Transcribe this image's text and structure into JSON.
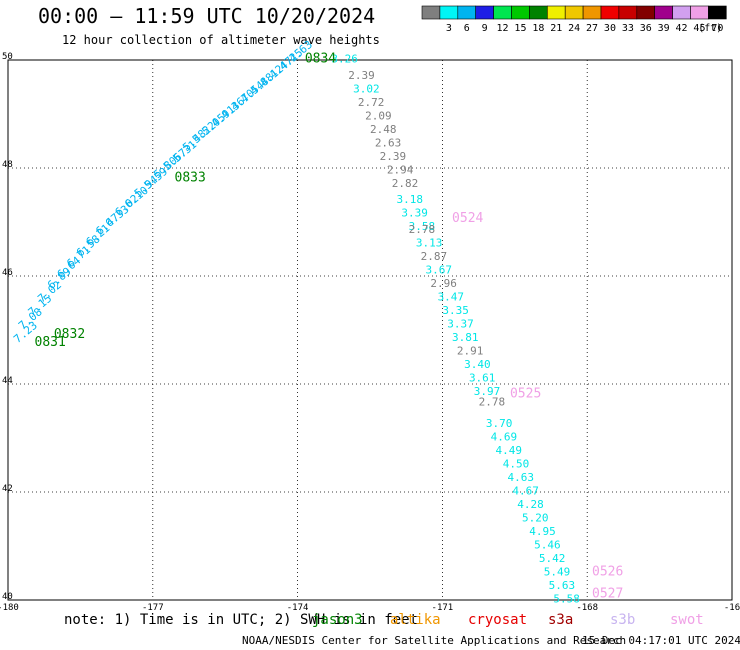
{
  "header": {
    "title": "00:00 – 11:59 UTC 10/20/2024",
    "subtitle": "12 hour collection of altimeter wave heights"
  },
  "color_scale": {
    "unit": "(ft)",
    "bins": [
      {
        "label": "",
        "color": "#7f7f7f"
      },
      {
        "label": "3",
        "color": "#00f5f5"
      },
      {
        "label": "6",
        "color": "#00b4f0"
      },
      {
        "label": "9",
        "color": "#1e1ee6"
      },
      {
        "label": "12",
        "color": "#00e650"
      },
      {
        "label": "15",
        "color": "#00c800"
      },
      {
        "label": "18",
        "color": "#008200"
      },
      {
        "label": "21",
        "color": "#f0f000"
      },
      {
        "label": "24",
        "color": "#f0c800"
      },
      {
        "label": "27",
        "color": "#f09600"
      },
      {
        "label": "30",
        "color": "#f00000"
      },
      {
        "label": "33",
        "color": "#c80000"
      },
      {
        "label": "36",
        "color": "#820000"
      },
      {
        "label": "39",
        "color": "#a0008c"
      },
      {
        "label": "42",
        "color": "#d2a0f0"
      },
      {
        "label": "45",
        "color": "#f0a0e6"
      },
      {
        "label": "70",
        "color": "#000000"
      }
    ]
  },
  "footer": {
    "note": "note: 1) Time is in UTC; 2) SWH is in feet",
    "satellites": [
      {
        "name": "jason3",
        "color": "#008200"
      },
      {
        "name": "altika",
        "color": "#f09600"
      },
      {
        "name": "cryosat",
        "color": "#e60000"
      },
      {
        "name": "s3a",
        "color": "#a00000"
      },
      {
        "name": "s3b",
        "color": "#c8b4f0"
      },
      {
        "name": "swot",
        "color": "#f0a0e6"
      }
    ],
    "credit": "NOAA/NESDIS Center for Satellite Applications and Research",
    "timestamp": "15 Dec 04:17:01 UTC 2024"
  },
  "chart_data": {
    "type": "scatter",
    "title": "00:00 – 11:59 UTC 10/20/2024",
    "subtitle": "12 hour collection of altimeter wave heights",
    "xlim": [
      -180,
      -165
    ],
    "ylim": [
      40,
      50
    ],
    "x_ticks": [
      "-180",
      "-177",
      "-174",
      "-171",
      "-168",
      "-16"
    ],
    "y_ticks": [
      "40",
      "42",
      "44",
      "46",
      "48",
      "50"
    ],
    "grid": true,
    "time_labels": [
      {
        "text": "0834",
        "x": -173.85,
        "y": 49.95,
        "color": "#008200"
      },
      {
        "text": "0833",
        "x": -176.55,
        "y": 47.75,
        "color": "#008200"
      },
      {
        "text": "0832",
        "x": -179.05,
        "y": 44.85,
        "color": "#008200"
      },
      {
        "text": "0831",
        "x": -179.45,
        "y": 44.7,
        "color": "#008200"
      },
      {
        "text": "0524",
        "x": -170.8,
        "y": 47.0,
        "color": "#f0a0e6"
      },
      {
        "text": "0525",
        "x": -169.6,
        "y": 43.75,
        "color": "#f0a0e6"
      },
      {
        "text": "0526",
        "x": -167.9,
        "y": 40.45,
        "color": "#f0a0e6"
      },
      {
        "text": "0527",
        "x": -167.9,
        "y": 40.05,
        "color": "#f0a0e6"
      }
    ],
    "series": [
      {
        "name": "jason3",
        "color": "#00b4f0",
        "points": [
          {
            "x": -174.1,
            "y": 49.95,
            "v": "4.63"
          },
          {
            "x": -174.3,
            "y": 49.8,
            "v": "4.25"
          },
          {
            "x": -174.5,
            "y": 49.65,
            "v": "4.47"
          },
          {
            "x": -174.7,
            "y": 49.5,
            "v": "4.12"
          },
          {
            "x": -174.9,
            "y": 49.35,
            "v": "4.88"
          },
          {
            "x": -175.1,
            "y": 49.2,
            "v": "4.54"
          },
          {
            "x": -175.3,
            "y": 49.05,
            "v": "4.70"
          },
          {
            "x": -175.5,
            "y": 48.9,
            "v": "4.36"
          },
          {
            "x": -175.7,
            "y": 48.75,
            "v": "4.91"
          },
          {
            "x": -175.9,
            "y": 48.6,
            "v": "5.05"
          },
          {
            "x": -176.1,
            "y": 48.45,
            "v": "5.22"
          },
          {
            "x": -176.3,
            "y": 48.3,
            "v": "5.48"
          },
          {
            "x": -176.5,
            "y": 48.1,
            "v": "5.31"
          },
          {
            "x": -176.7,
            "y": 47.95,
            "v": "5.67"
          },
          {
            "x": -176.9,
            "y": 47.8,
            "v": "5.80"
          },
          {
            "x": -177.1,
            "y": 47.6,
            "v": "5.59"
          },
          {
            "x": -177.3,
            "y": 47.45,
            "v": "5.94"
          },
          {
            "x": -177.5,
            "y": 47.25,
            "v": "6.10"
          },
          {
            "x": -177.7,
            "y": 47.1,
            "v": "6.02"
          },
          {
            "x": -177.9,
            "y": 46.9,
            "v": "6.33"
          },
          {
            "x": -178.1,
            "y": 46.75,
            "v": "6.47"
          },
          {
            "x": -178.3,
            "y": 46.55,
            "v": "6.21"
          },
          {
            "x": -178.5,
            "y": 46.35,
            "v": "6.58"
          },
          {
            "x": -178.7,
            "y": 46.15,
            "v": "6.71"
          },
          {
            "x": -178.9,
            "y": 45.95,
            "v": "6.64"
          },
          {
            "x": -179.1,
            "y": 45.75,
            "v": "6.89"
          },
          {
            "x": -179.3,
            "y": 45.5,
            "v": "7.02"
          },
          {
            "x": -179.5,
            "y": 45.25,
            "v": "7.15"
          },
          {
            "x": -179.7,
            "y": 45.0,
            "v": "7.08"
          },
          {
            "x": -179.8,
            "y": 44.75,
            "v": "7.23"
          }
        ]
      },
      {
        "name": "swot",
        "color": "#00e6e6",
        "points": [
          {
            "x": -173.3,
            "y": 49.95,
            "v": "3.26",
            "color": "#00e6e6"
          },
          {
            "x": -172.95,
            "y": 49.65,
            "v": "2.39",
            "color": "#7f7f7f"
          },
          {
            "x": -172.85,
            "y": 49.4,
            "v": "3.02",
            "color": "#00e6e6"
          },
          {
            "x": -172.75,
            "y": 49.15,
            "v": "2.72",
            "color": "#7f7f7f"
          },
          {
            "x": -172.6,
            "y": 48.9,
            "v": "2.09",
            "color": "#7f7f7f"
          },
          {
            "x": -172.5,
            "y": 48.65,
            "v": "2.48",
            "color": "#7f7f7f"
          },
          {
            "x": -172.4,
            "y": 48.4,
            "v": "2.63",
            "color": "#7f7f7f"
          },
          {
            "x": -172.3,
            "y": 48.15,
            "v": "2.39",
            "color": "#7f7f7f"
          },
          {
            "x": -172.15,
            "y": 47.9,
            "v": "2.94",
            "color": "#7f7f7f"
          },
          {
            "x": -172.05,
            "y": 47.65,
            "v": "2.82",
            "color": "#7f7f7f"
          },
          {
            "x": -171.95,
            "y": 47.35,
            "v": "3.18",
            "color": "#00e6e6"
          },
          {
            "x": -171.85,
            "y": 47.1,
            "v": "3.39",
            "color": "#00e6e6"
          },
          {
            "x": -171.7,
            "y": 46.85,
            "v": "3.58",
            "color": "#00e6e6"
          },
          {
            "x": -171.7,
            "y": 46.8,
            "v": "2.78",
            "color": "#7f7f7f"
          },
          {
            "x": -171.55,
            "y": 46.55,
            "v": "3.13",
            "color": "#00e6e6"
          },
          {
            "x": -171.45,
            "y": 46.3,
            "v": "2.87",
            "color": "#7f7f7f"
          },
          {
            "x": -171.35,
            "y": 46.05,
            "v": "3.67",
            "color": "#00e6e6"
          },
          {
            "x": -171.25,
            "y": 45.8,
            "v": "2.96",
            "color": "#7f7f7f"
          },
          {
            "x": -171.1,
            "y": 45.55,
            "v": "3.47",
            "color": "#00e6e6"
          },
          {
            "x": -171.0,
            "y": 45.3,
            "v": "3.35",
            "color": "#00e6e6"
          },
          {
            "x": -170.9,
            "y": 45.05,
            "v": "3.37",
            "color": "#00e6e6"
          },
          {
            "x": -170.8,
            "y": 44.8,
            "v": "3.81",
            "color": "#00e6e6"
          },
          {
            "x": -170.7,
            "y": 44.55,
            "v": "2.91",
            "color": "#7f7f7f"
          },
          {
            "x": -170.55,
            "y": 44.3,
            "v": "3.40",
            "color": "#00e6e6"
          },
          {
            "x": -170.45,
            "y": 44.05,
            "v": "3.61",
            "color": "#00e6e6"
          },
          {
            "x": -170.35,
            "y": 43.8,
            "v": "3.97",
            "color": "#00e6e6"
          },
          {
            "x": -170.25,
            "y": 43.6,
            "v": "2.78",
            "color": "#7f7f7f"
          },
          {
            "x": -170.1,
            "y": 43.2,
            "v": "3.70",
            "color": "#00e6e6"
          },
          {
            "x": -170.0,
            "y": 42.95,
            "v": "4.69",
            "color": "#00e6e6"
          },
          {
            "x": -169.9,
            "y": 42.7,
            "v": "4.49",
            "color": "#00e6e6"
          },
          {
            "x": -169.75,
            "y": 42.45,
            "v": "4.50",
            "color": "#00e6e6"
          },
          {
            "x": -169.65,
            "y": 42.2,
            "v": "4.63",
            "color": "#00e6e6"
          },
          {
            "x": -169.55,
            "y": 41.95,
            "v": "4.67",
            "color": "#00e6e6"
          },
          {
            "x": -169.45,
            "y": 41.7,
            "v": "4.28",
            "color": "#00e6e6"
          },
          {
            "x": -169.35,
            "y": 41.45,
            "v": "5.20",
            "color": "#00e6e6"
          },
          {
            "x": -169.2,
            "y": 41.2,
            "v": "4.95",
            "color": "#00e6e6"
          },
          {
            "x": -169.1,
            "y": 40.95,
            "v": "5.46",
            "color": "#00e6e6"
          },
          {
            "x": -169.0,
            "y": 40.7,
            "v": "5.42",
            "color": "#00e6e6"
          },
          {
            "x": -168.9,
            "y": 40.45,
            "v": "5.49",
            "color": "#00e6e6"
          },
          {
            "x": -168.8,
            "y": 40.2,
            "v": "5.63",
            "color": "#00e6e6"
          },
          {
            "x": -168.7,
            "y": 39.95,
            "v": "5.58",
            "color": "#00e6e6"
          }
        ]
      }
    ]
  }
}
